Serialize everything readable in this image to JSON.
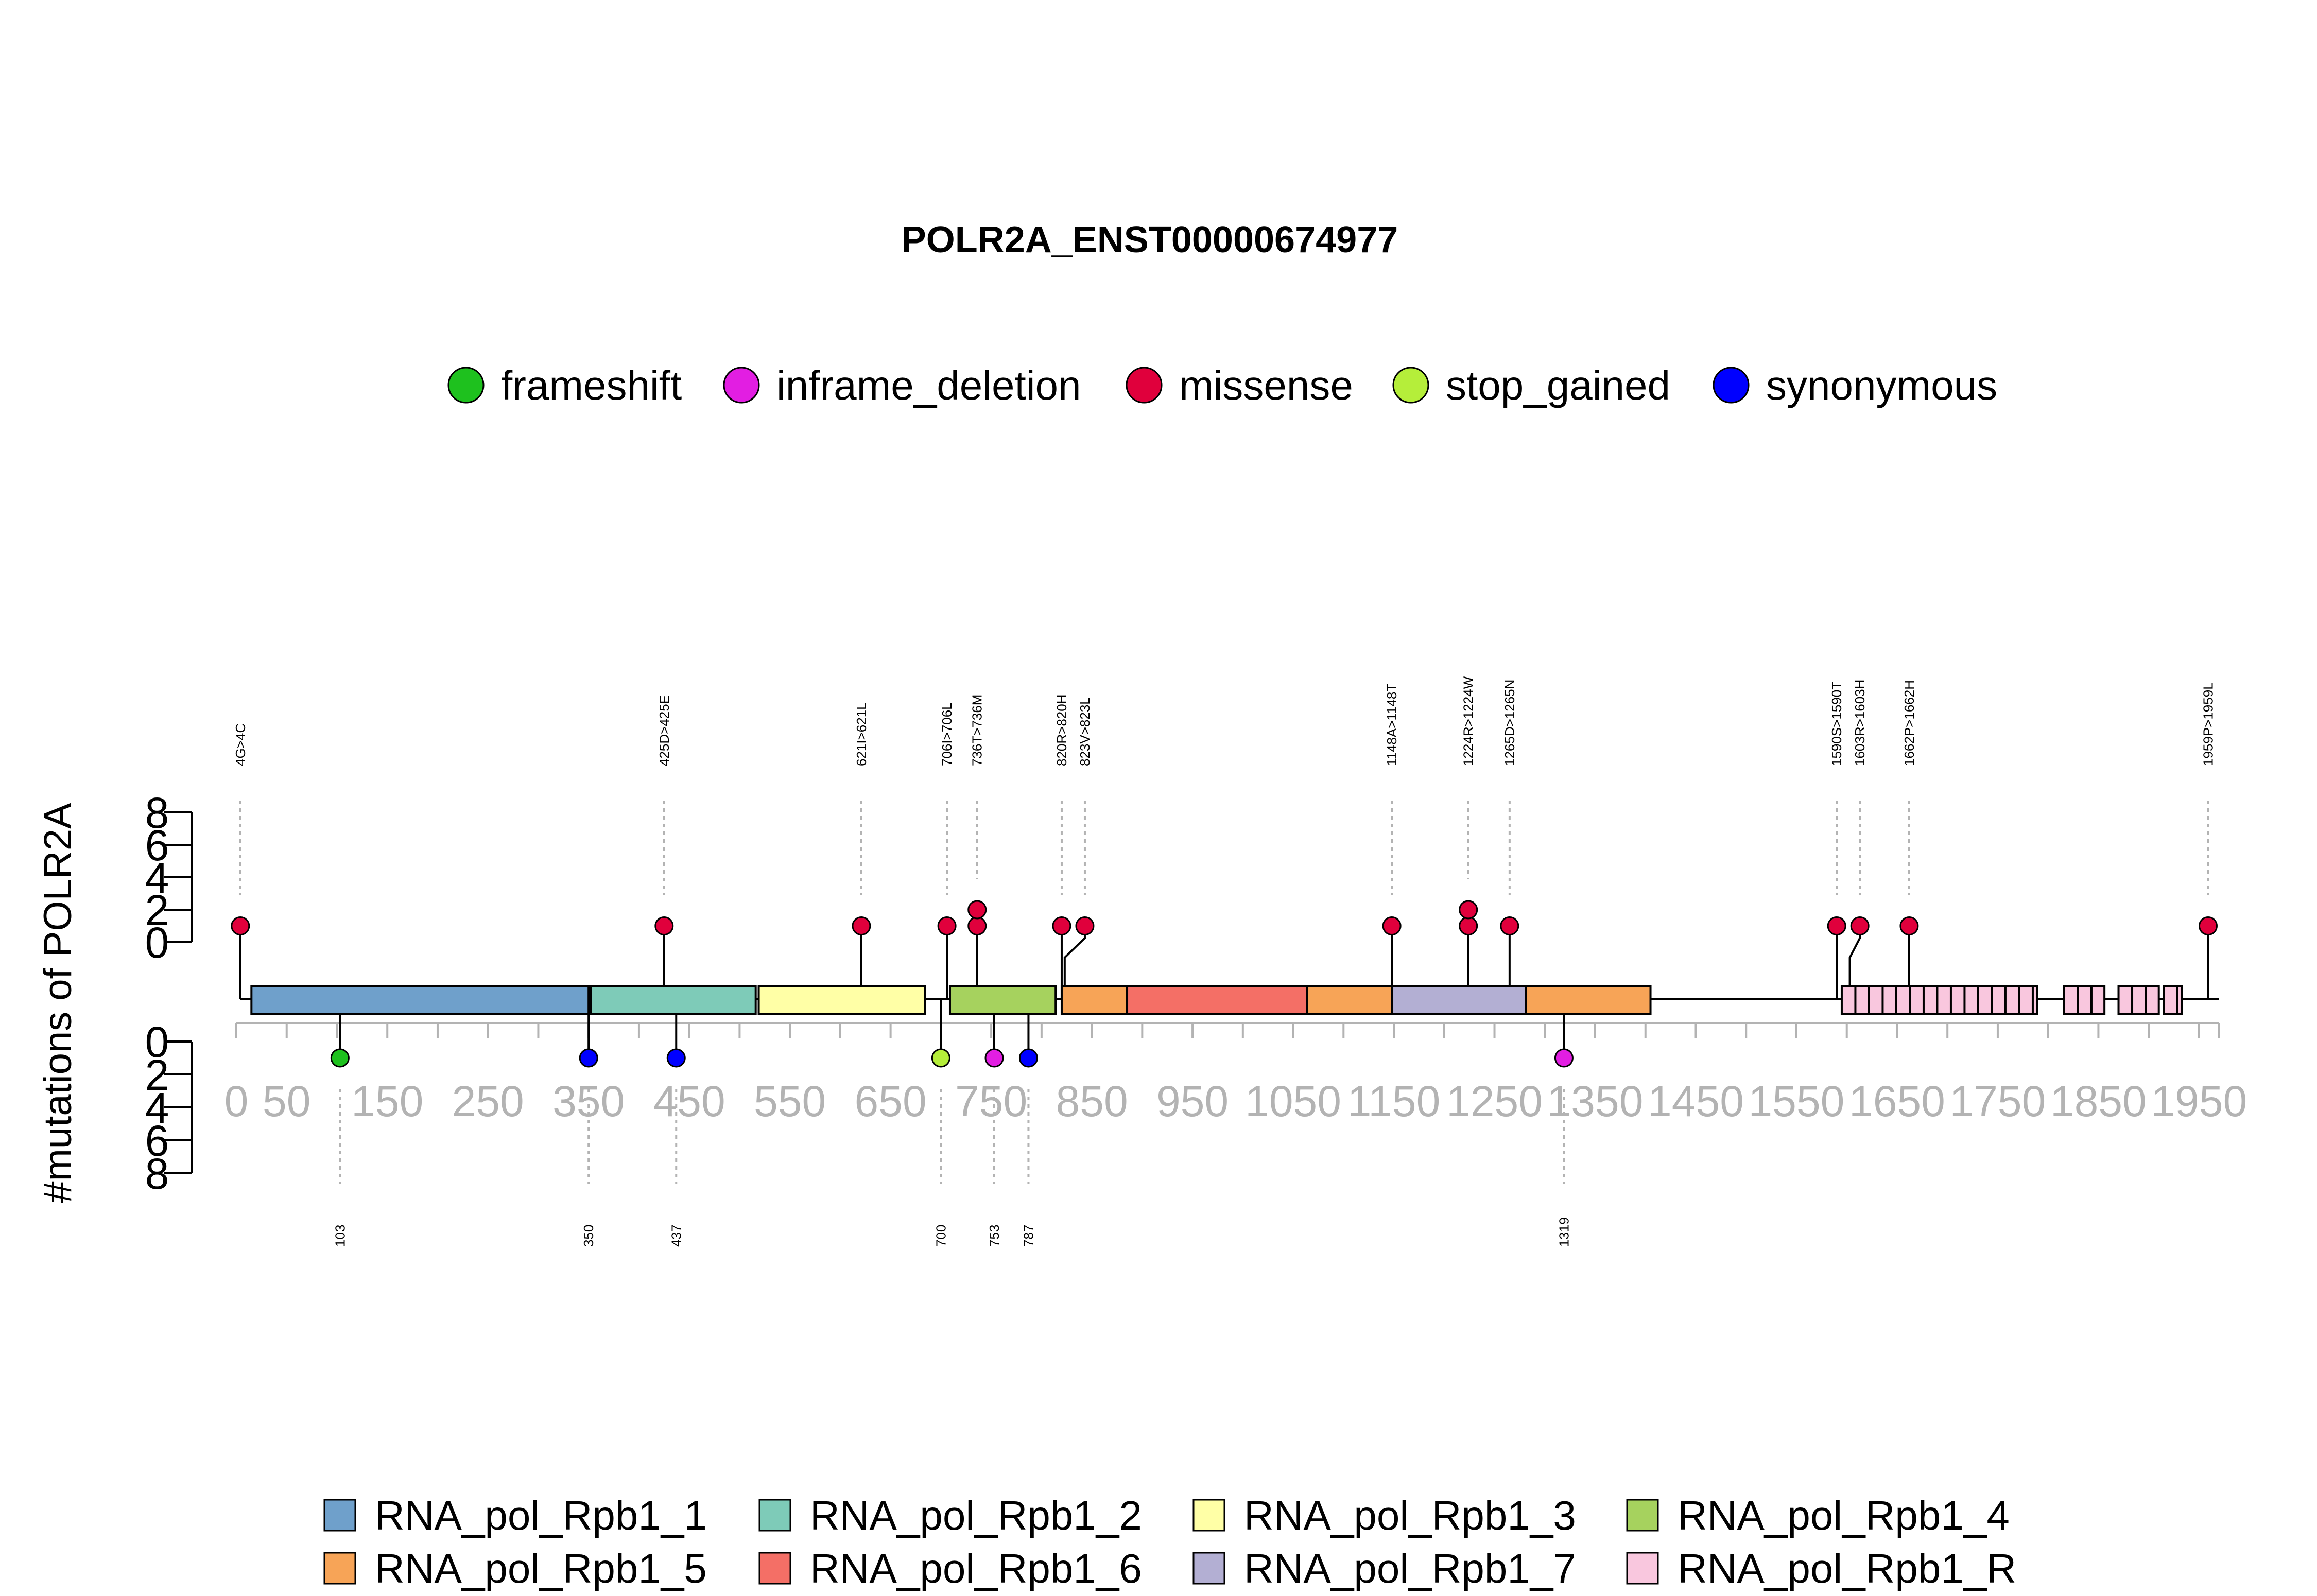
{
  "chart_data": {
    "type": "lollipop",
    "title": "POLR2A_ENST00000674977",
    "ylabel": "#mutations of POLR2A",
    "xlim": [
      0,
      1970
    ],
    "ylim_top": [
      0,
      8
    ],
    "ylim_bottom": [
      0,
      8
    ],
    "x_ticks": [
      0,
      50,
      150,
      250,
      350,
      450,
      550,
      650,
      750,
      850,
      950,
      1050,
      1150,
      1250,
      1350,
      1450,
      1550,
      1650,
      1750,
      1850,
      1950
    ],
    "y_ticks": [
      0,
      2,
      4,
      6,
      8
    ],
    "variant_types": [
      {
        "name": "frameshift",
        "color": "#1ec11e"
      },
      {
        "name": "inframe_deletion",
        "color": "#e21ee2"
      },
      {
        "name": "missense",
        "color": "#e0003c"
      },
      {
        "name": "stop_gained",
        "color": "#b5ee3a"
      },
      {
        "name": "synonymous",
        "color": "#0000ff"
      }
    ],
    "domains": [
      {
        "name": "RNA_pol_Rpb1_1",
        "color": "#6fa0cb",
        "segments": [
          [
            15,
            350
          ]
        ]
      },
      {
        "name": "RNA_pol_Rpb1_2",
        "color": "#7ecbb8",
        "segments": [
          [
            352,
            516
          ]
        ]
      },
      {
        "name": "RNA_pol_Rpb1_3",
        "color": "#ffffa6",
        "segments": [
          [
            519,
            684
          ]
        ]
      },
      {
        "name": "RNA_pol_Rpb1_4",
        "color": "#a6d25e",
        "segments": [
          [
            709,
            814
          ]
        ]
      },
      {
        "name": "RNA_pol_Rpb1_5",
        "color": "#f7a457",
        "segments": [
          [
            820,
            885
          ],
          [
            1064,
            1148
          ],
          [
            1281,
            1405
          ]
        ]
      },
      {
        "name": "RNA_pol_Rpb1_6",
        "color": "#f46f66",
        "segments": [
          [
            885,
            1064
          ]
        ]
      },
      {
        "name": "RNA_pol_Rpb1_7",
        "color": "#b3afd3",
        "segments": [
          [
            1148,
            1281
          ]
        ]
      },
      {
        "name": "RNA_pol_Rpb1_R",
        "color": "#f9c7de",
        "segments": [
          [
            1595,
            1789
          ],
          [
            1816,
            1856
          ],
          [
            1870,
            1910
          ],
          [
            1915,
            1933
          ]
        ]
      }
    ],
    "mutations_top": [
      {
        "label": "4G>4C",
        "position": 4,
        "count": 1,
        "type": "missense"
      },
      {
        "label": "425D>425E",
        "position": 425,
        "count": 1,
        "type": "missense"
      },
      {
        "label": "621I>621L",
        "position": 621,
        "count": 1,
        "type": "missense"
      },
      {
        "label": "706I>706L",
        "position": 706,
        "count": 1,
        "type": "missense"
      },
      {
        "label": "736T>736M",
        "position": 736,
        "count": 2,
        "type": "missense"
      },
      {
        "label": "820R>820H",
        "position": 820,
        "count": 1,
        "type": "missense"
      },
      {
        "label": "823V>823L",
        "position": 823,
        "count": 1,
        "type": "missense"
      },
      {
        "label": "1148A>1148T",
        "position": 1148,
        "count": 1,
        "type": "missense"
      },
      {
        "label": "1224R>1224W",
        "position": 1224,
        "count": 2,
        "type": "missense"
      },
      {
        "label": "1265D>1265N",
        "position": 1265,
        "count": 1,
        "type": "missense"
      },
      {
        "label": "1590S>1590T",
        "position": 1590,
        "count": 1,
        "type": "missense"
      },
      {
        "label": "1603R>1603H",
        "position": 1603,
        "count": 1,
        "type": "missense"
      },
      {
        "label": "1662P>1662H",
        "position": 1662,
        "count": 1,
        "type": "missense"
      },
      {
        "label": "1959P>1959L",
        "position": 1959,
        "count": 1,
        "type": "missense"
      }
    ],
    "mutations_bottom": [
      {
        "label": "103",
        "position": 103,
        "count": 1,
        "type": "frameshift"
      },
      {
        "label": "350",
        "position": 350,
        "count": 1,
        "type": "synonymous"
      },
      {
        "label": "437",
        "position": 437,
        "count": 1,
        "type": "synonymous"
      },
      {
        "label": "700",
        "position": 700,
        "count": 1,
        "type": "stop_gained"
      },
      {
        "label": "753",
        "position": 753,
        "count": 1,
        "type": "inframe_deletion"
      },
      {
        "label": "787",
        "position": 787,
        "count": 1,
        "type": "synonymous"
      },
      {
        "label": "1319",
        "position": 1319,
        "count": 1,
        "type": "inframe_deletion"
      }
    ]
  }
}
